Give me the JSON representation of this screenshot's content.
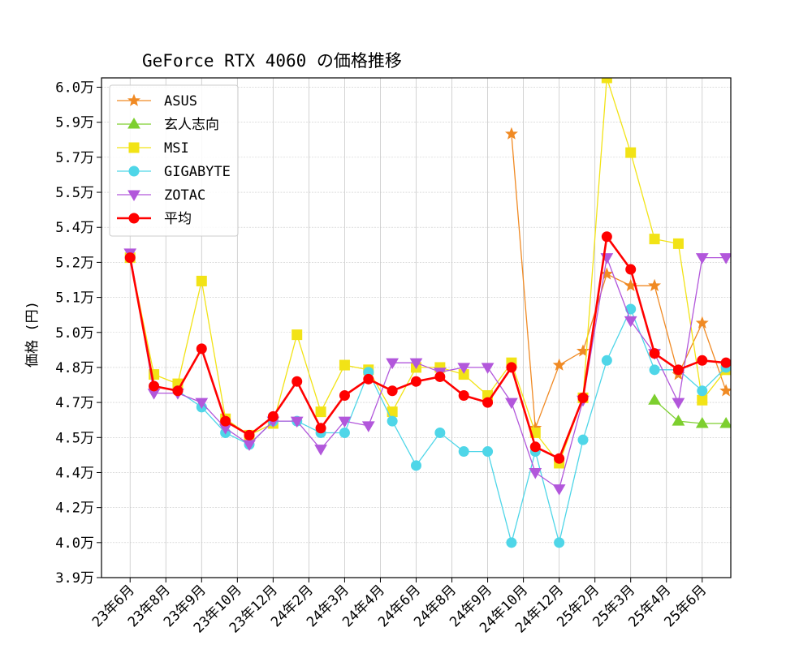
{
  "chart_data": {
    "type": "line",
    "title": "GeForce RTX 4060 の価格推移",
    "xlabel": "",
    "ylabel": "価格 (円)",
    "x_ticks": [
      "23年6月",
      "23年8月",
      "23年9月",
      "23年10月",
      "23年12月",
      "24年2月",
      "24年3月",
      "24年4月",
      "24年6月",
      "24年8月",
      "24年9月",
      "24年10月",
      "24年12月",
      "25年2月",
      "25年3月",
      "25年4月",
      "25年6月"
    ],
    "y_ticks": [
      "3.9万",
      "4.0万",
      "4.2万",
      "4.4万",
      "4.5万",
      "4.7万",
      "4.8万",
      "5.0万",
      "5.1万",
      "5.2万",
      "5.4万",
      "5.5万",
      "5.7万",
      "5.9万",
      "6.0万"
    ],
    "ylim": [
      39000,
      60400
    ],
    "x_range": [
      -1.2,
      25.2
    ],
    "grid": true,
    "legend_position": "top-left",
    "series": [
      {
        "name": "ASUS",
        "color": "#f08a24",
        "marker": "star",
        "line_width": 1.3,
        "x": [
          16,
          17,
          18,
          19,
          20,
          21,
          22,
          23,
          24,
          25
        ],
        "y": [
          58000,
          45400,
          48100,
          48700,
          52000,
          51500,
          51500,
          47700,
          49900,
          47000
        ]
      },
      {
        "name": "玄人志向",
        "color": "#7dcf2f",
        "marker": "triangle-up",
        "line_width": 1.3,
        "x": [
          22,
          23,
          24,
          25
        ],
        "y": [
          46600,
          45700,
          45600,
          45600
        ]
      },
      {
        "name": "MSI",
        "color": "#f2e316",
        "marker": "square",
        "line_width": 1.3,
        "x": [
          0,
          1,
          2,
          3,
          4,
          5,
          6,
          7,
          8,
          9,
          10,
          11,
          12,
          13,
          14,
          15,
          16,
          17,
          18,
          19,
          20,
          21,
          22,
          23,
          24,
          25
        ],
        "y": [
          52700,
          47700,
          47300,
          51700,
          45800,
          45100,
          45600,
          49400,
          46100,
          48100,
          47900,
          46100,
          48000,
          48000,
          47700,
          46800,
          48200,
          45200,
          43900,
          46700,
          60400,
          57200,
          53500,
          53300,
          46600,
          47900
        ]
      },
      {
        "name": "GIGABYTE",
        "color": "#4fd6e8",
        "marker": "circle",
        "line_width": 1.3,
        "x": [
          0,
          1,
          2,
          3,
          4,
          5,
          6,
          7,
          8,
          9,
          10,
          11,
          12,
          13,
          14,
          15,
          16,
          17,
          18,
          19,
          20,
          21,
          22,
          23,
          24,
          25
        ],
        "y": [
          52700,
          47200,
          47000,
          46300,
          45200,
          44700,
          45700,
          45700,
          45200,
          45200,
          47800,
          45700,
          43800,
          45200,
          44400,
          44400,
          40500,
          44400,
          40500,
          44900,
          48300,
          50500,
          47900,
          47900,
          47000,
          48000
        ]
      },
      {
        "name": "ZOTAC",
        "color": "#b257db",
        "marker": "triangle-down",
        "line_width": 1.3,
        "x": [
          0,
          1,
          2,
          3,
          4,
          5,
          6,
          7,
          8,
          9,
          10,
          11,
          12,
          13,
          14,
          15,
          16,
          17,
          18,
          19,
          20,
          21,
          22,
          23,
          24,
          25
        ],
        "y": [
          52900,
          46900,
          46900,
          46500,
          45400,
          44700,
          45700,
          45700,
          44500,
          45700,
          45500,
          48200,
          48200,
          47800,
          48000,
          48000,
          46500,
          43500,
          42800,
          46600,
          52700,
          50000,
          48600,
          46500,
          52700,
          52700
        ]
      },
      {
        "name": "平均",
        "color": "#ff0000",
        "marker": "circle",
        "line_width": 2.6,
        "x": [
          0,
          1,
          2,
          3,
          4,
          5,
          6,
          7,
          8,
          9,
          10,
          11,
          12,
          13,
          14,
          15,
          16,
          17,
          18,
          19,
          20,
          21,
          22,
          23,
          24,
          25
        ],
        "y": [
          52700,
          47200,
          47000,
          48800,
          45700,
          45100,
          45900,
          47400,
          45400,
          46800,
          47500,
          47000,
          47400,
          47600,
          46800,
          46500,
          48000,
          44600,
          44100,
          46700,
          53600,
          52200,
          48600,
          47900,
          48300,
          48200
        ]
      }
    ]
  }
}
